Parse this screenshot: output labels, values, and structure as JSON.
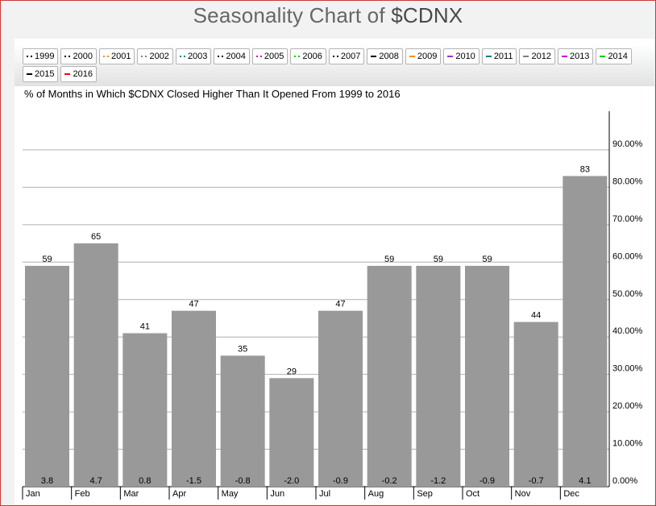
{
  "title_main": "Seasonality Chart of ",
  "title_symbol": "$CDNX",
  "legend": [
    {
      "label": "1999",
      "color": "#000000",
      "style": "dotted"
    },
    {
      "label": "2000",
      "color": "#000000",
      "style": "dotted"
    },
    {
      "label": "2001",
      "color": "#ff8c00",
      "style": "dotted"
    },
    {
      "label": "2002",
      "color": "#7f7f7f",
      "style": "dotted"
    },
    {
      "label": "2003",
      "color": "#008080",
      "style": "dotted"
    },
    {
      "label": "2004",
      "color": "#000000",
      "style": "dotted"
    },
    {
      "label": "2005",
      "color": "#cc00cc",
      "style": "dotted"
    },
    {
      "label": "2006",
      "color": "#00cc00",
      "style": "dotted"
    },
    {
      "label": "2007",
      "color": "#000000",
      "style": "dotted"
    },
    {
      "label": "2008",
      "color": "#000000",
      "style": "solid"
    },
    {
      "label": "2009",
      "color": "#ff8c00",
      "style": "solid"
    },
    {
      "label": "2010",
      "color": "#9933cc",
      "style": "solid"
    },
    {
      "label": "2011",
      "color": "#008080",
      "style": "solid"
    },
    {
      "label": "2012",
      "color": "#7f7f7f",
      "style": "solid"
    },
    {
      "label": "2013",
      "color": "#cc00cc",
      "style": "solid"
    },
    {
      "label": "2014",
      "color": "#00cc00",
      "style": "solid"
    },
    {
      "label": "2015",
      "color": "#000000",
      "style": "solid"
    },
    {
      "label": "2016",
      "color": "#ff0000",
      "style": "solid"
    }
  ],
  "chart_data": {
    "type": "bar",
    "title": "% of Months in Which $CDNX Closed Higher Than It Opened From 1999 to 2016",
    "categories": [
      "Jan",
      "Feb",
      "Mar",
      "Apr",
      "May",
      "Jun",
      "Jul",
      "Aug",
      "Sep",
      "Oct",
      "Nov",
      "Dec"
    ],
    "values": [
      59,
      65,
      41,
      47,
      35,
      29,
      47,
      59,
      59,
      59,
      44,
      83
    ],
    "bar_labels": [
      "59",
      "65",
      "41",
      "47",
      "35",
      "29",
      "47",
      "59",
      "59",
      "59",
      "44",
      "83"
    ],
    "bottom_labels": [
      "3.8",
      "4.7",
      "0.8",
      "-1.5",
      "-0.8",
      "-2.0",
      "-0.9",
      "-0.2",
      "-1.2",
      "-0.9",
      "-0.7",
      "4.1"
    ],
    "y_ticks": [
      0,
      10,
      20,
      30,
      40,
      50,
      60,
      70,
      80,
      90
    ],
    "y_tick_labels": [
      "0.00%",
      "10.00%",
      "20.00%",
      "30.00%",
      "40.00%",
      "50.00%",
      "60.00%",
      "70.00%",
      "80.00%",
      "90.00%"
    ],
    "ylim": [
      0,
      100
    ],
    "y_axis_position": "right",
    "grid": true,
    "bar_color": "#999999",
    "grid_color": "#b0b0b0"
  }
}
